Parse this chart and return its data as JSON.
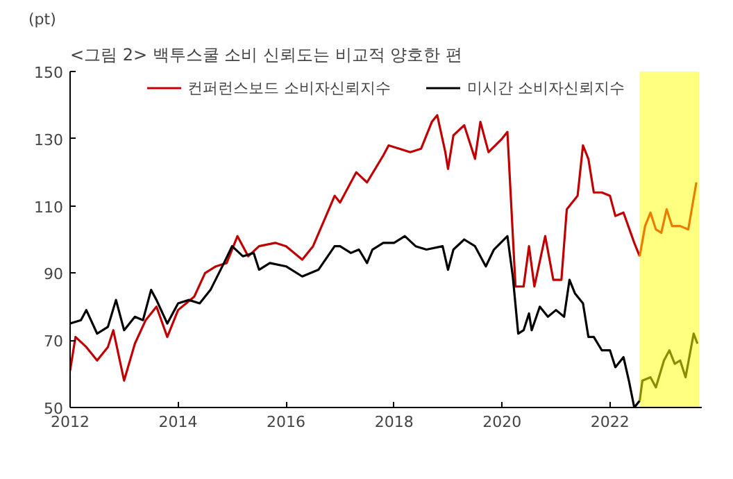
{
  "chart_data": {
    "type": "line",
    "title": "<그림 2> 백투스쿨 소비 신뢰도는 비교적 양호한 편",
    "ylabel": "(pt)",
    "xlim": [
      2012,
      2023.7
    ],
    "xticks": [
      2012,
      2014,
      2016,
      2018,
      2020,
      2022
    ],
    "ylim": [
      50,
      150
    ],
    "yticks": [
      50,
      70,
      90,
      110,
      130,
      150
    ],
    "grid": false,
    "legend": "top",
    "line_style": "solid",
    "marker": "none",
    "bands": [
      {
        "axis": "x",
        "from": 2022.55,
        "to": 2023.65,
        "color": "#ffff80"
      }
    ],
    "series": [
      {
        "name": "컨퍼런스보드 소비자신뢰지수",
        "color": "#c00000",
        "x": [
          2012.0,
          2012.1,
          2012.3,
          2012.5,
          2012.7,
          2012.8,
          2013.0,
          2013.2,
          2013.4,
          2013.6,
          2013.8,
          2014.0,
          2014.3,
          2014.5,
          2014.7,
          2014.9,
          2015.1,
          2015.3,
          2015.5,
          2015.8,
          2016.0,
          2016.3,
          2016.5,
          2016.9,
          2017.0,
          2017.3,
          2017.5,
          2017.8,
          2017.9,
          2018.1,
          2018.3,
          2018.5,
          2018.7,
          2018.8,
          2018.95,
          2019.0,
          2019.1,
          2019.3,
          2019.5,
          2019.6,
          2019.75,
          2020.0,
          2020.1,
          2020.25,
          2020.4,
          2020.5,
          2020.6,
          2020.8,
          2020.95,
          2021.1,
          2021.2,
          2021.4,
          2021.5,
          2021.6,
          2021.7,
          2021.85,
          2022.0,
          2022.1,
          2022.25,
          2022.45,
          2022.55
        ],
        "values": [
          61,
          71,
          68,
          64,
          68,
          73,
          58,
          69,
          76,
          80,
          71,
          79,
          83,
          90,
          92,
          93,
          101,
          95,
          98,
          99,
          98,
          94,
          98,
          113,
          111,
          120,
          117,
          125,
          128,
          127,
          126,
          127,
          135,
          137,
          126,
          121,
          131,
          134,
          124,
          135,
          126,
          130,
          132,
          86,
          86,
          98,
          86,
          101,
          88,
          88,
          109,
          113,
          128,
          124,
          114,
          114,
          113,
          107,
          108,
          99,
          95
        ]
      },
      {
        "name": "미시간 소비자신뢰지수",
        "color": "#000000",
        "x": [
          2012.0,
          2012.2,
          2012.3,
          2012.5,
          2012.7,
          2012.85,
          2013.0,
          2013.2,
          2013.35,
          2013.5,
          2013.6,
          2013.8,
          2014.0,
          2014.2,
          2014.4,
          2014.6,
          2014.85,
          2015.0,
          2015.2,
          2015.4,
          2015.5,
          2015.7,
          2016.0,
          2016.3,
          2016.6,
          2016.9,
          2017.0,
          2017.2,
          2017.35,
          2017.5,
          2017.6,
          2017.8,
          2018.0,
          2018.2,
          2018.4,
          2018.6,
          2018.9,
          2019.0,
          2019.1,
          2019.3,
          2019.5,
          2019.7,
          2019.85,
          2020.1,
          2020.2,
          2020.3,
          2020.4,
          2020.5,
          2020.55,
          2020.7,
          2020.85,
          2021.0,
          2021.15,
          2021.25,
          2021.35,
          2021.5,
          2021.6,
          2021.7,
          2021.85,
          2022.0,
          2022.1,
          2022.25,
          2022.35,
          2022.45,
          2022.55
        ],
        "values": [
          75,
          76,
          79,
          72,
          74,
          82,
          73,
          77,
          76,
          85,
          82,
          75,
          81,
          82,
          81,
          85,
          93,
          98,
          95,
          96,
          91,
          93,
          92,
          89,
          91,
          98,
          98,
          96,
          97,
          93,
          97,
          99,
          99,
          101,
          98,
          97,
          98,
          91,
          97,
          100,
          98,
          92,
          97,
          101,
          89,
          72,
          73,
          78,
          73,
          80,
          77,
          79,
          77,
          88,
          84,
          81,
          71,
          71,
          67,
          67,
          62,
          65,
          58,
          50,
          52
        ]
      },
      {
        "color": "#e87d00",
        "x": [
          2022.55,
          2022.65,
          2022.75,
          2022.85,
          2022.95,
          2023.05,
          2023.15,
          2023.3,
          2023.45,
          2023.6
        ],
        "values": [
          95,
          104,
          108,
          103,
          102,
          109,
          104,
          104,
          103,
          117
        ]
      },
      {
        "color": "#8c8c00",
        "x": [
          2022.55,
          2022.6,
          2022.75,
          2022.85,
          2023.0,
          2023.1,
          2023.2,
          2023.3,
          2023.4,
          2023.55,
          2023.62
        ],
        "values": [
          52,
          58,
          59,
          56,
          64,
          67,
          63,
          64,
          59,
          72,
          69
        ]
      }
    ]
  }
}
